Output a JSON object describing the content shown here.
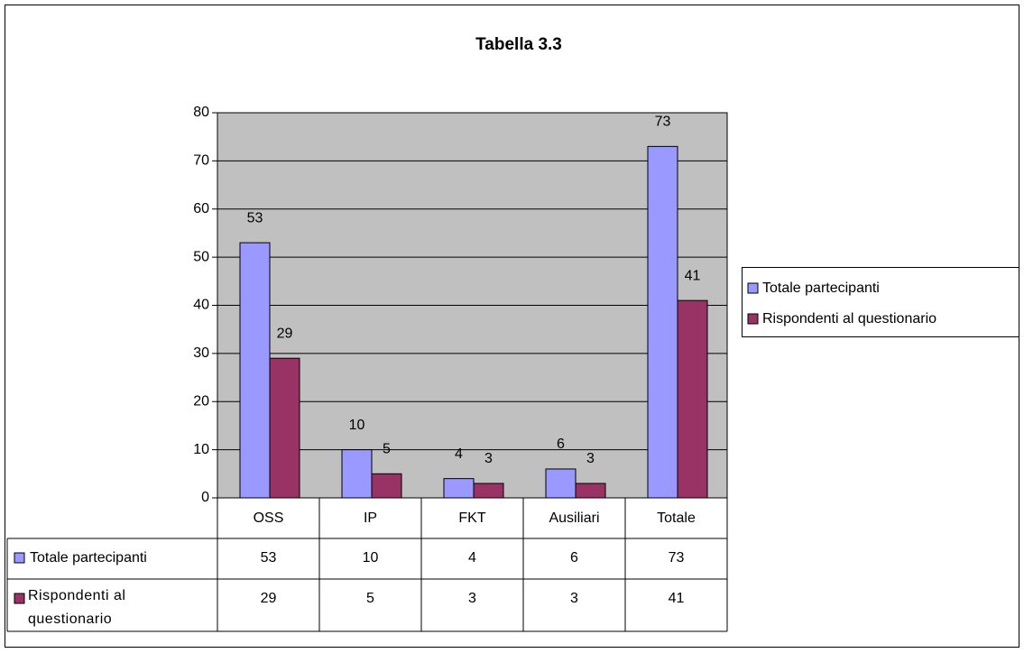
{
  "chart_data": {
    "type": "bar",
    "title": "Tabella 3.3",
    "categories": [
      "OSS",
      "IP",
      "FKT",
      "Ausiliari",
      "Totale"
    ],
    "series": [
      {
        "name": "Totale partecipanti",
        "color": "#9999ff",
        "values": [
          53,
          10,
          4,
          6,
          73
        ]
      },
      {
        "name": "Rispondenti al questionario",
        "color": "#993366",
        "values": [
          29,
          5,
          3,
          3,
          41
        ]
      }
    ],
    "ylim": [
      0,
      80
    ],
    "yticks": [
      0,
      10,
      20,
      30,
      40,
      50,
      60,
      70,
      80
    ],
    "grid": true,
    "legend": "right",
    "plot_background": "#c0c0c0"
  }
}
